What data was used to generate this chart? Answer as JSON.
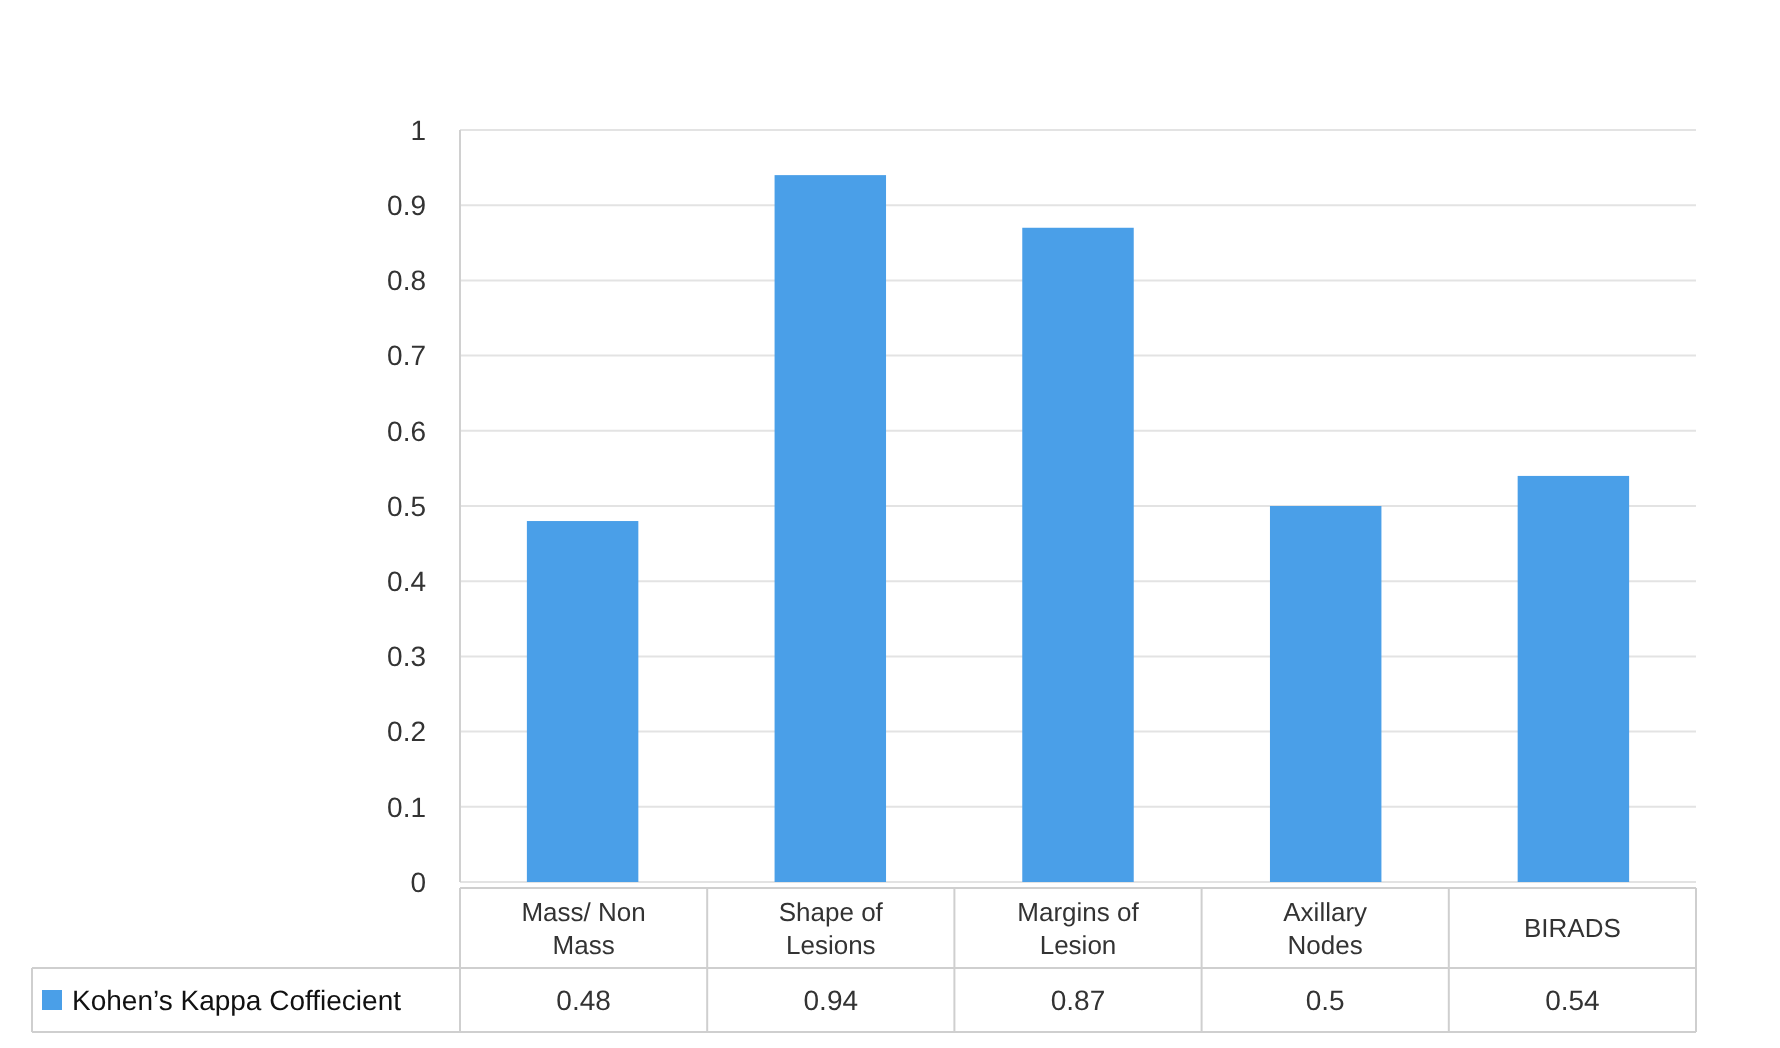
{
  "chart_data": {
    "type": "bar",
    "categories": [
      "Mass/ Non Mass",
      "Shape of Lesions",
      "Margins of Lesion",
      "Axillary Nodes",
      "BIRADS"
    ],
    "series": [
      {
        "name": "Kohen’s Kappa Coffiecient",
        "color": "#4a9fe8",
        "values": [
          0.48,
          0.94,
          0.87,
          0.5,
          0.54
        ]
      }
    ],
    "ylim": [
      0,
      1
    ],
    "yticks": [
      0,
      0.1,
      0.2,
      0.3,
      0.4,
      0.5,
      0.6,
      0.7,
      0.8,
      0.9,
      1
    ],
    "grid": "y",
    "data_labels": true,
    "legend": "bottom"
  }
}
